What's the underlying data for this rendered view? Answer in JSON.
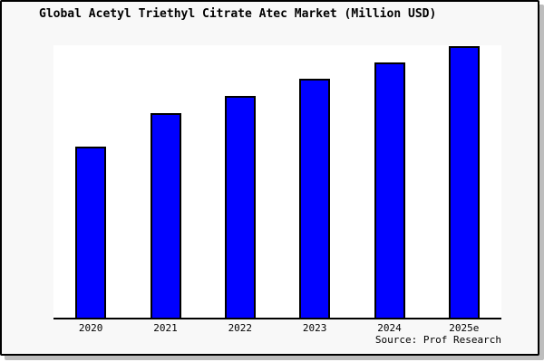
{
  "window": {
    "title": "Global Acetyl Triethyl Citrate Atec Market (Million USD)"
  },
  "chart_data": {
    "type": "bar",
    "title": "Global Acetyl Triethyl Citrate Atec Market (Million USD)",
    "categories": [
      "2020",
      "2021",
      "2022",
      "2023",
      "2024",
      "2025e"
    ],
    "values": [
      63,
      75.3,
      81.7,
      88,
      94,
      100
    ],
    "value_note": "y-axis has no tick labels; values are relative bar heights with 2025e = 100",
    "xlabel": "",
    "ylabel": "",
    "ylim": [
      0,
      100
    ],
    "grid": false,
    "legend": null,
    "source": "Source: Prof Research",
    "colors": {
      "bar_fill": "#0000ff",
      "bar_border": "#000000",
      "plot_background": "#ffffff",
      "figure_background": "#f8f8f8",
      "frame_border": "#000000",
      "shadow": "#bdbdbd",
      "text": "#000000"
    }
  }
}
